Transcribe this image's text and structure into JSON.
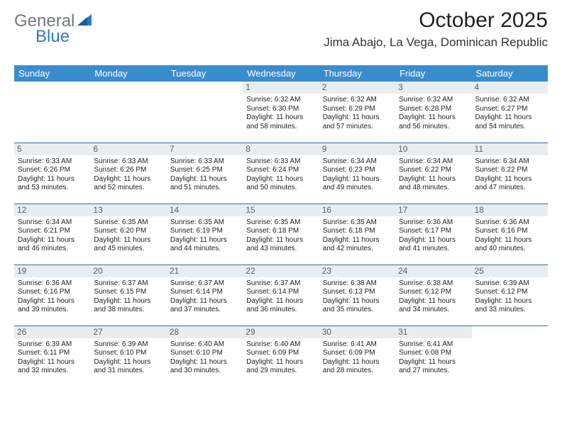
{
  "logo": {
    "general": "General",
    "blue": "Blue"
  },
  "title": "October 2025",
  "location": "Jima Abajo, La Vega, Dominican Republic",
  "colors": {
    "header_bg": "#3b8ccb",
    "header_text": "#ffffff",
    "day_band_bg": "#e9edf0",
    "row_divider": "#2f6da8",
    "logo_gray": "#6f7983",
    "logo_blue": "#2b7bbd",
    "background": "#ffffff"
  },
  "typography": {
    "title_fontsize": 30,
    "location_fontsize": 17,
    "header_fontsize": 13,
    "daynum_fontsize": 12,
    "cell_fontsize": 10
  },
  "weekdays": [
    "Sunday",
    "Monday",
    "Tuesday",
    "Wednesday",
    "Thursday",
    "Friday",
    "Saturday"
  ],
  "weeks": [
    [
      null,
      null,
      null,
      {
        "n": "1",
        "sunrise": "6:32 AM",
        "sunset": "6:30 PM",
        "daylight": "11 hours and 58 minutes."
      },
      {
        "n": "2",
        "sunrise": "6:32 AM",
        "sunset": "6:29 PM",
        "daylight": "11 hours and 57 minutes."
      },
      {
        "n": "3",
        "sunrise": "6:32 AM",
        "sunset": "6:28 PM",
        "daylight": "11 hours and 56 minutes."
      },
      {
        "n": "4",
        "sunrise": "6:32 AM",
        "sunset": "6:27 PM",
        "daylight": "11 hours and 54 minutes."
      }
    ],
    [
      {
        "n": "5",
        "sunrise": "6:33 AM",
        "sunset": "6:26 PM",
        "daylight": "11 hours and 53 minutes."
      },
      {
        "n": "6",
        "sunrise": "6:33 AM",
        "sunset": "6:26 PM",
        "daylight": "11 hours and 52 minutes."
      },
      {
        "n": "7",
        "sunrise": "6:33 AM",
        "sunset": "6:25 PM",
        "daylight": "11 hours and 51 minutes."
      },
      {
        "n": "8",
        "sunrise": "6:33 AM",
        "sunset": "6:24 PM",
        "daylight": "11 hours and 50 minutes."
      },
      {
        "n": "9",
        "sunrise": "6:34 AM",
        "sunset": "6:23 PM",
        "daylight": "11 hours and 49 minutes."
      },
      {
        "n": "10",
        "sunrise": "6:34 AM",
        "sunset": "6:22 PM",
        "daylight": "11 hours and 48 minutes."
      },
      {
        "n": "11",
        "sunrise": "6:34 AM",
        "sunset": "6:22 PM",
        "daylight": "11 hours and 47 minutes."
      }
    ],
    [
      {
        "n": "12",
        "sunrise": "6:34 AM",
        "sunset": "6:21 PM",
        "daylight": "11 hours and 46 minutes."
      },
      {
        "n": "13",
        "sunrise": "6:35 AM",
        "sunset": "6:20 PM",
        "daylight": "11 hours and 45 minutes."
      },
      {
        "n": "14",
        "sunrise": "6:35 AM",
        "sunset": "6:19 PM",
        "daylight": "11 hours and 44 minutes."
      },
      {
        "n": "15",
        "sunrise": "6:35 AM",
        "sunset": "6:18 PM",
        "daylight": "11 hours and 43 minutes."
      },
      {
        "n": "16",
        "sunrise": "6:35 AM",
        "sunset": "6:18 PM",
        "daylight": "11 hours and 42 minutes."
      },
      {
        "n": "17",
        "sunrise": "6:36 AM",
        "sunset": "6:17 PM",
        "daylight": "11 hours and 41 minutes."
      },
      {
        "n": "18",
        "sunrise": "6:36 AM",
        "sunset": "6:16 PM",
        "daylight": "11 hours and 40 minutes."
      }
    ],
    [
      {
        "n": "19",
        "sunrise": "6:36 AM",
        "sunset": "6:16 PM",
        "daylight": "11 hours and 39 minutes."
      },
      {
        "n": "20",
        "sunrise": "6:37 AM",
        "sunset": "6:15 PM",
        "daylight": "11 hours and 38 minutes."
      },
      {
        "n": "21",
        "sunrise": "6:37 AM",
        "sunset": "6:14 PM",
        "daylight": "11 hours and 37 minutes."
      },
      {
        "n": "22",
        "sunrise": "6:37 AM",
        "sunset": "6:14 PM",
        "daylight": "11 hours and 36 minutes."
      },
      {
        "n": "23",
        "sunrise": "6:38 AM",
        "sunset": "6:13 PM",
        "daylight": "11 hours and 35 minutes."
      },
      {
        "n": "24",
        "sunrise": "6:38 AM",
        "sunset": "6:12 PM",
        "daylight": "11 hours and 34 minutes."
      },
      {
        "n": "25",
        "sunrise": "6:39 AM",
        "sunset": "6:12 PM",
        "daylight": "11 hours and 33 minutes."
      }
    ],
    [
      {
        "n": "26",
        "sunrise": "6:39 AM",
        "sunset": "6:11 PM",
        "daylight": "11 hours and 32 minutes."
      },
      {
        "n": "27",
        "sunrise": "6:39 AM",
        "sunset": "6:10 PM",
        "daylight": "11 hours and 31 minutes."
      },
      {
        "n": "28",
        "sunrise": "6:40 AM",
        "sunset": "6:10 PM",
        "daylight": "11 hours and 30 minutes."
      },
      {
        "n": "29",
        "sunrise": "6:40 AM",
        "sunset": "6:09 PM",
        "daylight": "11 hours and 29 minutes."
      },
      {
        "n": "30",
        "sunrise": "6:41 AM",
        "sunset": "6:09 PM",
        "daylight": "11 hours and 28 minutes."
      },
      {
        "n": "31",
        "sunrise": "6:41 AM",
        "sunset": "6:08 PM",
        "daylight": "11 hours and 27 minutes."
      },
      null
    ]
  ]
}
